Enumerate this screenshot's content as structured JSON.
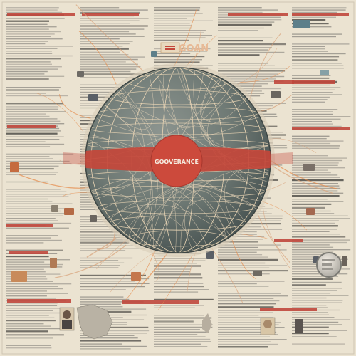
{
  "poster": {
    "center_label": "GOOVERANCE",
    "top_banner": "GOAN",
    "colors": {
      "background": "#ebe3d1",
      "globe_fill": "#6f7a75",
      "globe_dark": "#4f5a57",
      "accent_red": "#c4463a",
      "mesh_line": "#e7c9a3",
      "orange_line": "#e58a4a",
      "text_gray": "#8b8a86",
      "header_red": "#c0473c"
    }
  }
}
